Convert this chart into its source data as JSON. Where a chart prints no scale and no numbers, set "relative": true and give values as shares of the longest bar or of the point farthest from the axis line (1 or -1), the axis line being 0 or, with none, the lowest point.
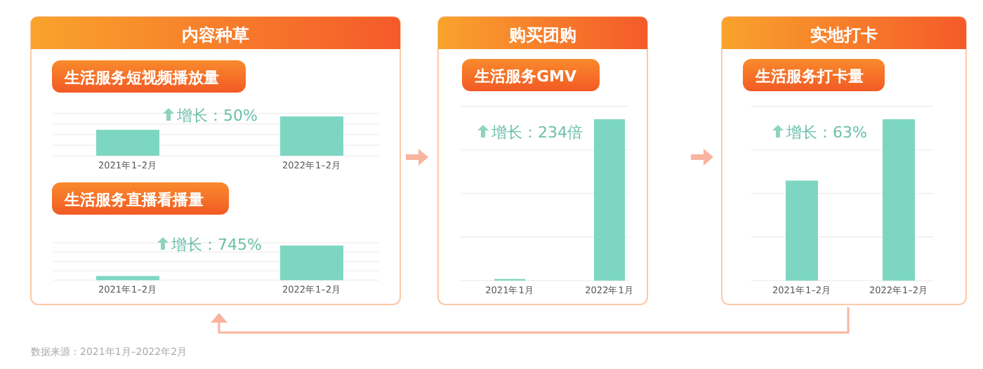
{
  "chart_data": [
    {
      "type": "other",
      "title": "内容种草"
    },
    {
      "type": "bar",
      "title": "生活服务短视频播放量",
      "categories": [
        "2021年1–2月",
        "2022年1–2月"
      ],
      "values": [
        0.66,
        1
      ],
      "color": "#7dd6c2",
      "relative": true,
      "annotations": [
        "增长：50%"
      ]
    },
    {
      "type": "bar",
      "title": "生活服务直播看播量",
      "categories": [
        "2021年1–2月",
        "2022年1–2月"
      ],
      "values": [
        0.12,
        1
      ],
      "color": "#7dd6c2",
      "relative": true,
      "annotations": [
        "增长：745%"
      ]
    },
    {
      "type": "other",
      "title": "购买团购"
    },
    {
      "type": "bar",
      "title": "生活服务GMV",
      "categories": [
        "2021年1月",
        "2022年1月"
      ],
      "values": [
        0.01,
        1
      ],
      "color": "#7dd6c2",
      "relative": true,
      "annotations": [
        "增长：234倍"
      ]
    },
    {
      "type": "other",
      "title": "实地打卡"
    },
    {
      "type": "bar",
      "title": "生活服务打卡量",
      "categories": [
        "2021年1–2月",
        "2022年1–2月"
      ],
      "values": [
        0.62,
        1
      ],
      "color": "#7dd6c2",
      "relative": true,
      "annotations": [
        "增长：63%"
      ]
    },
    {
      "type": "other",
      "annotations": [
        "数据来源：2021年1月–2022年2月"
      ]
    }
  ]
}
